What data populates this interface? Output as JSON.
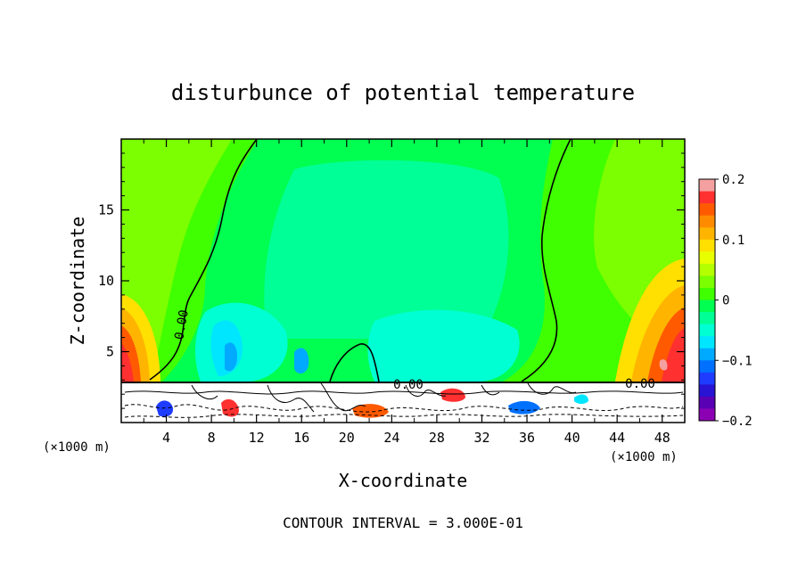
{
  "chart_data": {
    "type": "heatmap",
    "title": "disturbunce of potential temperature",
    "xlabel": "X-coordinate",
    "ylabel": "Z-coordinate",
    "x_unit": "(×1000 m)",
    "x_unit_right": "(×1000 m)",
    "xlim": [
      0,
      50
    ],
    "ylim": [
      0,
      20
    ],
    "x_ticks": [
      4,
      8,
      12,
      16,
      20,
      24,
      28,
      32,
      36,
      40,
      44,
      48
    ],
    "y_ticks": [
      5,
      10,
      15
    ],
    "colorbar": {
      "range": [
        -0.2,
        0.2
      ],
      "tick_labels": [
        "0.2",
        "0.1",
        "0",
        "−0.1",
        "−0.2"
      ],
      "tick_values": [
        0.2,
        0.1,
        0,
        -0.1,
        -0.2
      ],
      "colors": [
        "#f5a0a0",
        "#ff3030",
        "#ff5a00",
        "#ff8c00",
        "#ffb400",
        "#ffe000",
        "#e8ff00",
        "#b4ff00",
        "#7cff00",
        "#40ff00",
        "#00ff50",
        "#00ff96",
        "#00ffd2",
        "#00e6ff",
        "#00aaff",
        "#0070ff",
        "#1e3cff",
        "#2814d2",
        "#5a00b4",
        "#8c00b4"
      ]
    },
    "contour_labels": [
      "0.00",
      "0.00",
      "0.00"
    ],
    "terrain_height_km": 2.8,
    "field_summary": {
      "left_boundary_max": 0.15,
      "right_boundary_max": 0.18,
      "interior_min": -0.08,
      "zero_contour_x_km": [
        6,
        39
      ]
    },
    "footer": "CONTOUR INTERVAL = 3.000E-01"
  }
}
